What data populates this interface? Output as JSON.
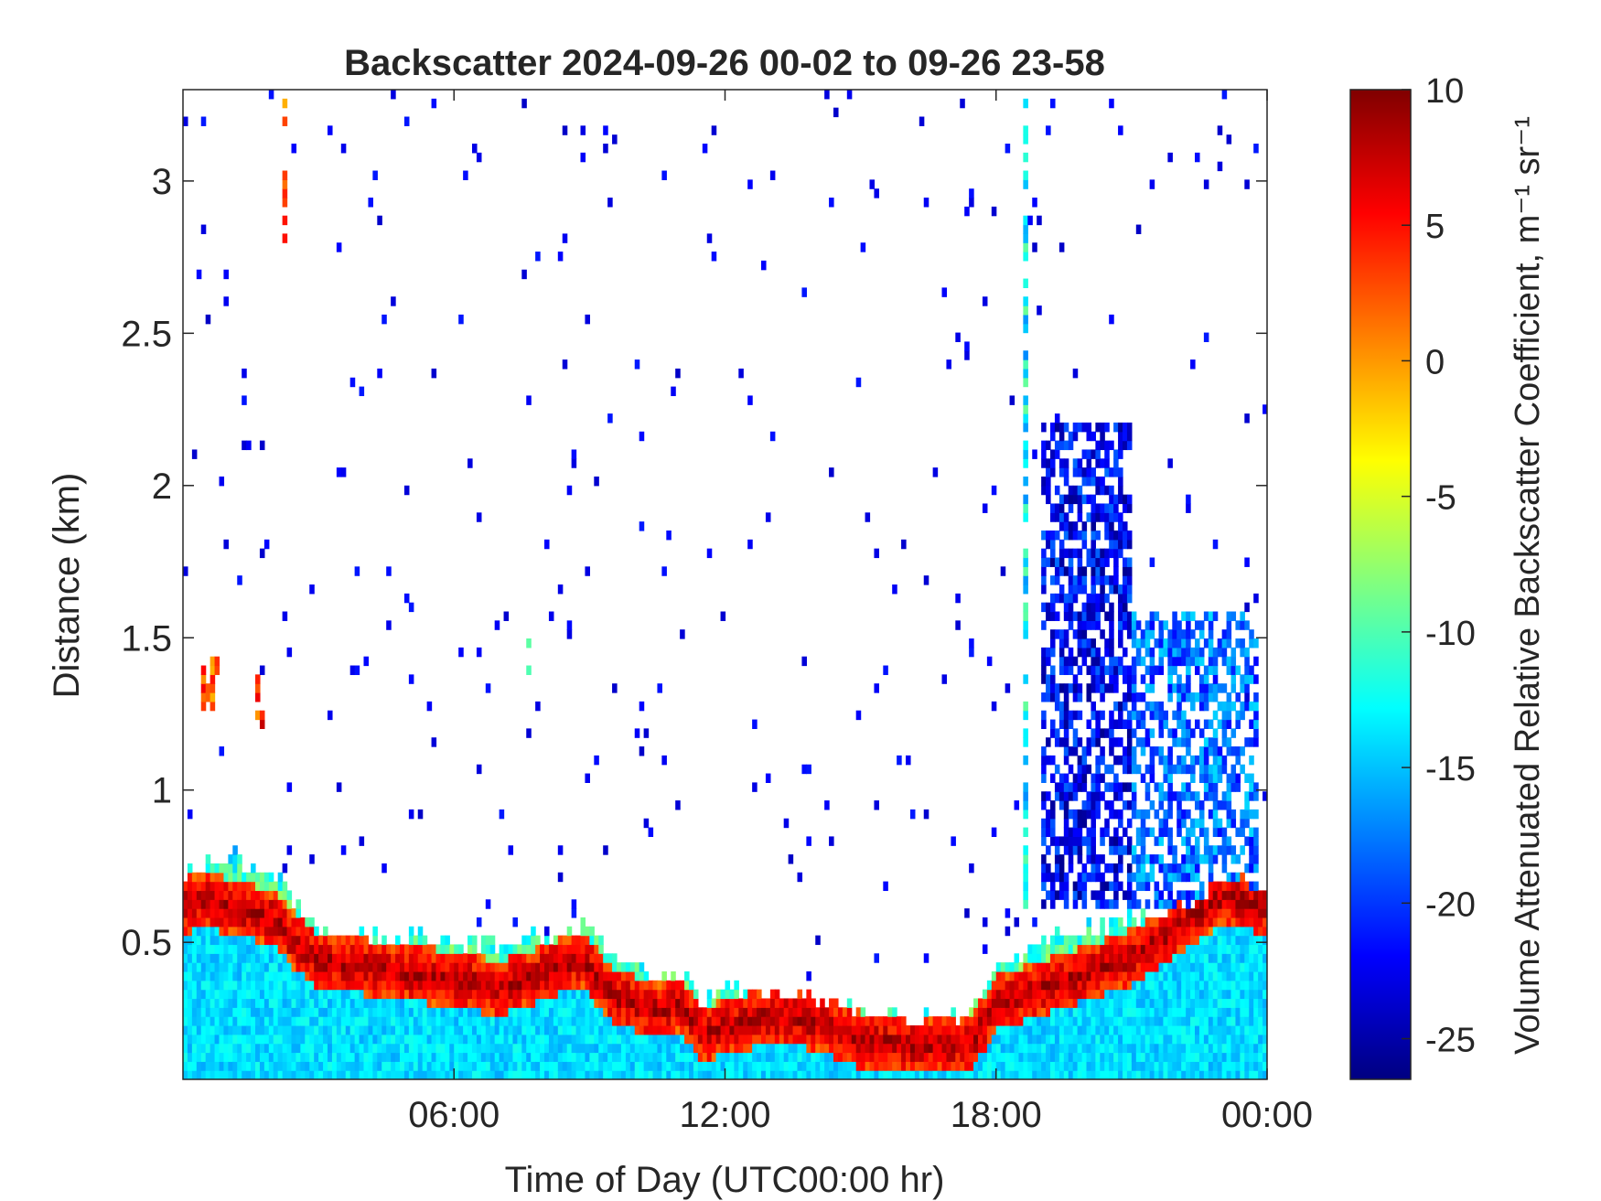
{
  "chart_data": {
    "type": "heatmap",
    "title": "Backscatter 2024-09-26 00-02 to 09-26 23-58",
    "xlabel": "Time of Day (UTC00:00 hr)",
    "ylabel": "Distance (km)",
    "colorbar_label": "Volume Attenuated Relative Backscatter Coefficient, m⁻¹ sr⁻¹",
    "colormap": "jet",
    "xlim_hours": [
      0,
      24
    ],
    "ylim_km": [
      0.05,
      3.3
    ],
    "clim": [
      -26.5,
      10
    ],
    "x_ticks": [
      {
        "value": 6,
        "label": "06:00"
      },
      {
        "value": 12,
        "label": "12:00"
      },
      {
        "value": 18,
        "label": "18:00"
      },
      {
        "value": 24,
        "label": "00:00"
      }
    ],
    "y_ticks": [
      {
        "value": 0.5,
        "label": "0.5"
      },
      {
        "value": 1.0,
        "label": "1"
      },
      {
        "value": 1.5,
        "label": "1.5"
      },
      {
        "value": 2.0,
        "label": "2"
      },
      {
        "value": 2.5,
        "label": "2.5"
      },
      {
        "value": 3.0,
        "label": "3"
      }
    ],
    "c_ticks": [
      {
        "value": 10,
        "label": "10"
      },
      {
        "value": 5,
        "label": "5"
      },
      {
        "value": 0,
        "label": "0"
      },
      {
        "value": -5,
        "label": "-5"
      },
      {
        "value": -10,
        "label": "-10"
      },
      {
        "value": -15,
        "label": "-15"
      },
      {
        "value": -20,
        "label": "-20"
      },
      {
        "value": -25,
        "label": "-25"
      }
    ],
    "grid": false,
    "layer_top_km": [
      {
        "t": 0.0,
        "top": 0.7,
        "peak": 0.62
      },
      {
        "t": 0.5,
        "top": 0.75,
        "peak": 0.64
      },
      {
        "t": 1.0,
        "top": 0.8,
        "peak": 0.62
      },
      {
        "t": 1.5,
        "top": 0.75,
        "peak": 0.6
      },
      {
        "t": 2.0,
        "top": 0.72,
        "peak": 0.58
      },
      {
        "t": 2.5,
        "top": 0.62,
        "peak": 0.5
      },
      {
        "t": 3.0,
        "top": 0.55,
        "peak": 0.44
      },
      {
        "t": 4.0,
        "top": 0.53,
        "peak": 0.42
      },
      {
        "t": 5.0,
        "top": 0.52,
        "peak": 0.4
      },
      {
        "t": 6.0,
        "top": 0.5,
        "peak": 0.38
      },
      {
        "t": 7.0,
        "top": 0.5,
        "peak": 0.35
      },
      {
        "t": 8.0,
        "top": 0.52,
        "peak": 0.4
      },
      {
        "t": 8.8,
        "top": 0.55,
        "peak": 0.45
      },
      {
        "t": 9.5,
        "top": 0.45,
        "peak": 0.33
      },
      {
        "t": 10.5,
        "top": 0.38,
        "peak": 0.27
      },
      {
        "t": 11.0,
        "top": 0.4,
        "peak": 0.3
      },
      {
        "t": 11.5,
        "top": 0.3,
        "peak": 0.2
      },
      {
        "t": 12.0,
        "top": 0.35,
        "peak": 0.22
      },
      {
        "t": 13.0,
        "top": 0.35,
        "peak": 0.26
      },
      {
        "t": 14.0,
        "top": 0.32,
        "peak": 0.24
      },
      {
        "t": 15.0,
        "top": 0.28,
        "peak": 0.18
      },
      {
        "t": 16.0,
        "top": 0.25,
        "peak": 0.16
      },
      {
        "t": 17.0,
        "top": 0.25,
        "peak": 0.16
      },
      {
        "t": 17.5,
        "top": 0.28,
        "peak": 0.18
      },
      {
        "t": 18.0,
        "top": 0.4,
        "peak": 0.3
      },
      {
        "t": 19.0,
        "top": 0.5,
        "peak": 0.35
      },
      {
        "t": 20.0,
        "top": 0.55,
        "peak": 0.4
      },
      {
        "t": 21.0,
        "top": 0.58,
        "peak": 0.45
      },
      {
        "t": 22.0,
        "top": 0.6,
        "peak": 0.55
      },
      {
        "t": 23.0,
        "top": 0.7,
        "peak": 0.65
      },
      {
        "t": 24.0,
        "top": 0.68,
        "peak": 0.62
      }
    ],
    "cloud_features": [
      {
        "t0": 0.4,
        "t1": 0.8,
        "y0": 1.25,
        "y1": 1.45,
        "value": 3
      },
      {
        "t0": 1.6,
        "t1": 1.8,
        "y0": 1.18,
        "y1": 1.38,
        "value": 4
      },
      {
        "t0": 2.2,
        "t1": 2.3,
        "y0": 2.8,
        "y1": 3.3,
        "value": 2
      },
      {
        "t0": 7.6,
        "t1": 7.7,
        "y0": 1.35,
        "y1": 1.5,
        "value": -10
      },
      {
        "t0": 18.6,
        "t1": 18.7,
        "y0": 0.6,
        "y1": 3.3,
        "value": -13
      },
      {
        "t0": 19.0,
        "t1": 21.0,
        "y0": 0.6,
        "y1": 2.2,
        "value": -22
      },
      {
        "t0": 21.0,
        "t1": 23.8,
        "y0": 0.6,
        "y1": 1.6,
        "value": -18
      }
    ]
  }
}
